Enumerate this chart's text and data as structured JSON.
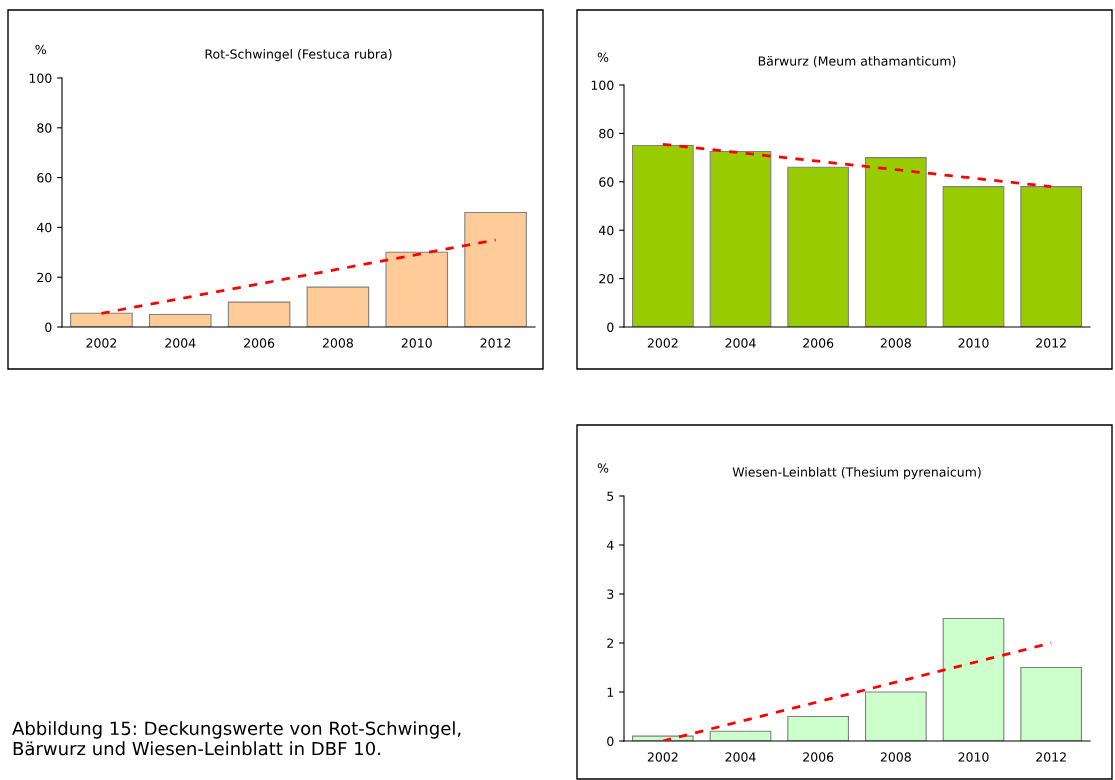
{
  "chart_data": [
    {
      "type": "bar",
      "title": "Rot-Schwingel (Festuca rubra)",
      "ylabel": "%",
      "categories": [
        "2002",
        "2004",
        "2006",
        "2008",
        "2010",
        "2012"
      ],
      "ylim": [
        0,
        100
      ],
      "yticks": [
        0,
        20,
        40,
        60,
        80,
        100
      ],
      "series": [
        {
          "color": "#ffcc99",
          "values": [
            5.5,
            5,
            10,
            16,
            30,
            46
          ]
        },
        {
          "type": "line",
          "color": "#ff0000",
          "line_style": "dashed",
          "values": [
            5.5,
            11.4,
            17.3,
            23.2,
            29.1,
            35
          ]
        }
      ]
    },
    {
      "type": "bar",
      "title": "Bärwurz (Meum athamanticum)",
      "ylabel": "%",
      "categories": [
        "2002",
        "2004",
        "2006",
        "2008",
        "2010",
        "2012"
      ],
      "ylim": [
        0,
        100
      ],
      "yticks": [
        0,
        20,
        40,
        60,
        80,
        100
      ],
      "series": [
        {
          "color": "#99cc00",
          "values": [
            75,
            72.5,
            66,
            70,
            58,
            58
          ]
        },
        {
          "type": "line",
          "color": "#ff0000",
          "line_style": "dashed",
          "values": [
            75.5,
            72,
            68.5,
            65,
            61.5,
            58
          ]
        }
      ]
    },
    {
      "type": "bar",
      "title": "Wiesen-Leinblatt (Thesium pyrenaicum)",
      "ylabel": "%",
      "categories": [
        "2002",
        "2004",
        "2006",
        "2008",
        "2010",
        "2012"
      ],
      "ylim": [
        0,
        5
      ],
      "yticks": [
        0,
        1,
        2,
        3,
        4,
        5
      ],
      "series": [
        {
          "color": "#ccffcc",
          "values": [
            0.1,
            0.2,
            0.5,
            1.0,
            2.5,
            1.5
          ]
        },
        {
          "type": "line",
          "color": "#ff0000",
          "line_style": "dashed",
          "values": [
            0,
            0.4,
            0.8,
            1.2,
            1.6,
            2.0
          ]
        }
      ],
      "annotations": [
        "Abbildung 15: Deckungswerte von Rot-Schwingel,\nBärwurz und Wiesen-Leinblatt in DBF 10."
      ]
    }
  ]
}
